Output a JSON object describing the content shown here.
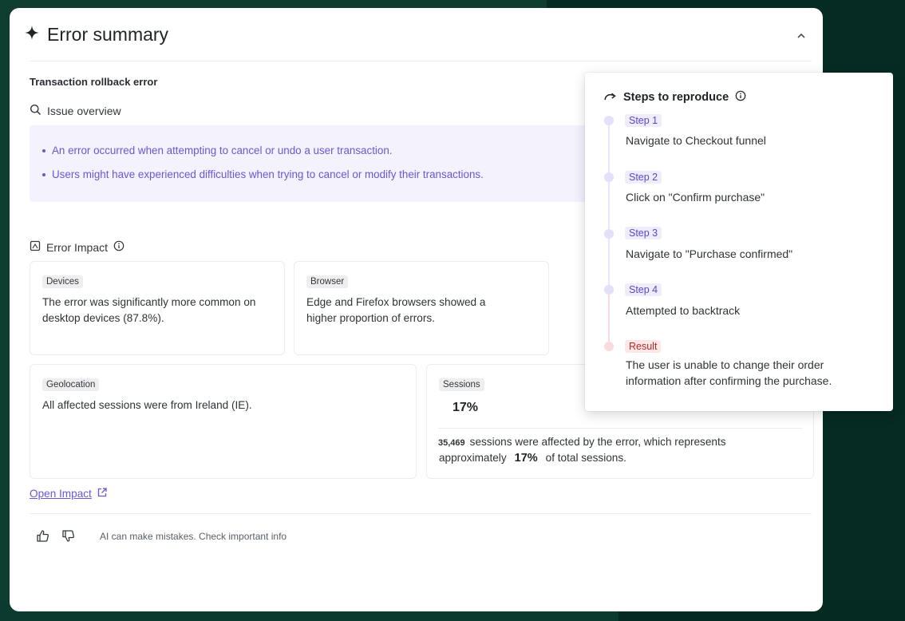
{
  "header": {
    "title": "Error summary",
    "sparkle_icon": "sparkle-icon",
    "collapse_icon": "chevron-up-icon"
  },
  "error_title": "Transaction rollback error",
  "issue_overview": {
    "label": "Issue overview",
    "items": [
      "An error occurred when attempting to cancel or undo a user transaction.",
      "Users might have experienced difficulties when trying to cancel or modify their transactions."
    ]
  },
  "impact": {
    "label": "Error Impact",
    "cards": {
      "devices": {
        "tag": "Devices",
        "text": "The error was significantly more common on desktop devices (87.8%)."
      },
      "browser": {
        "tag": "Browser",
        "text": "Edge and Firefox browsers showed a higher proportion of errors."
      },
      "geolocation": {
        "tag": "Geolocation",
        "text": "All affected sessions were from Ireland (IE)."
      },
      "sessions": {
        "tag": "Sessions",
        "percent": "17%",
        "count": "35,469",
        "text_a": "sessions were affected by the error, which represents",
        "text_b": "approximately",
        "percent_inline": "17%",
        "text_c": "of total sessions."
      }
    },
    "open_link": "Open Impact"
  },
  "footer": {
    "disclaimer": "AI can make mistakes. Check important info"
  },
  "steps": {
    "title": "Steps to reproduce",
    "items": [
      {
        "tag": "Step 1",
        "text": "Navigate to Checkout funnel"
      },
      {
        "tag": "Step 2",
        "text": "Click on \"Confirm purchase\""
      },
      {
        "tag": "Step 3",
        "text": "Navigate to \"Purchase confirmed\""
      },
      {
        "tag": "Step 4",
        "text": "Attempted to backtrack"
      }
    ],
    "result": {
      "tag": "Result",
      "text": "The user is unable to change their order information after confirming the purchase."
    }
  },
  "colors": {
    "accent": "#6c56d6",
    "overview_bg": "#f3f2fd",
    "result": "#b42828",
    "background": "#0f3d30"
  }
}
